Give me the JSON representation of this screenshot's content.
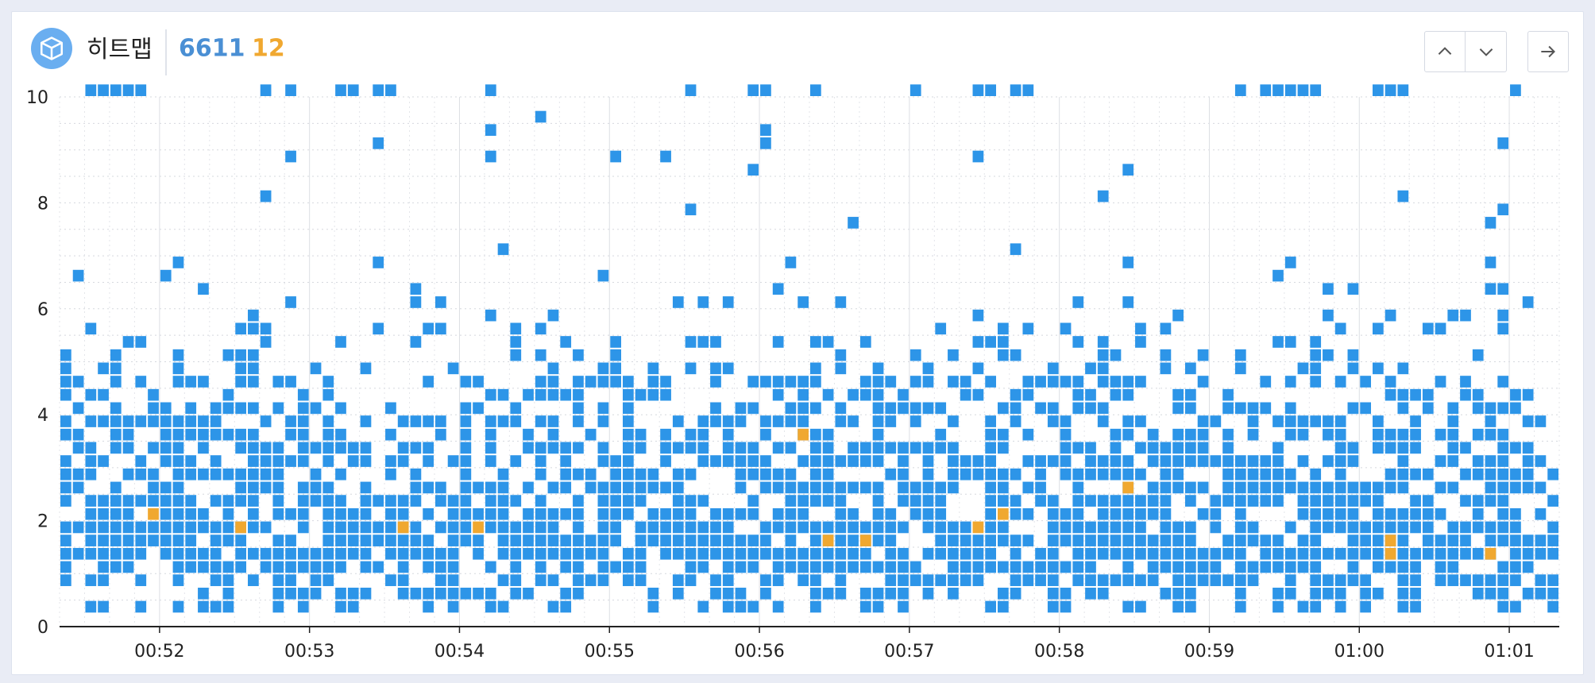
{
  "header": {
    "title": "히트맵",
    "total_count": "6611",
    "error_count": "12",
    "icon": "cube-icon",
    "buttons": {
      "up": "chevron-up-icon",
      "down": "chevron-down-icon",
      "go": "arrow-right-icon"
    }
  },
  "colors": {
    "normal": "#2d95e8",
    "error": "#f0a830",
    "total_text": "#4a8fd4"
  },
  "chart_data": {
    "type": "heatmap",
    "title": "",
    "xlabel": "",
    "ylabel": "",
    "x_unit": "time",
    "x_range": [
      "00:51:20",
      "01:01:20"
    ],
    "x_ticks": [
      "00:52",
      "00:53",
      "00:54",
      "00:55",
      "00:56",
      "00:57",
      "00:58",
      "00:59",
      "01:00",
      "01:01"
    ],
    "ylim": [
      0,
      10
    ],
    "y_ticks": [
      "0",
      "2",
      "4",
      "6",
      "8",
      "10"
    ],
    "grid": true,
    "cell_x_seconds": 5,
    "cell_y": 0.25,
    "error_cells": [
      [
        "00:51:55",
        2.0
      ],
      [
        "00:52:30",
        1.75
      ],
      [
        "00:53:35",
        1.75
      ],
      [
        "00:54:05",
        1.75
      ],
      [
        "00:56:15",
        3.5
      ],
      [
        "00:56:25",
        1.5
      ],
      [
        "00:56:40",
        1.5
      ],
      [
        "00:57:25",
        1.75
      ],
      [
        "00:57:35",
        2.0
      ],
      [
        "00:58:25",
        2.5
      ],
      [
        "01:00:10",
        1.5
      ],
      [
        "01:00:10",
        1.25
      ],
      [
        "01:00:50",
        1.25
      ]
    ],
    "high_cells": [
      [
        "00:51:30",
        10
      ],
      [
        "00:51:35",
        10
      ],
      [
        "00:51:40",
        10
      ],
      [
        "00:51:45",
        10
      ],
      [
        "00:51:50",
        10
      ],
      [
        "00:52:40",
        10
      ],
      [
        "00:52:50",
        10
      ],
      [
        "00:53:10",
        10
      ],
      [
        "00:53:15",
        10
      ],
      [
        "00:53:25",
        10
      ],
      [
        "00:53:30",
        10
      ],
      [
        "00:54:10",
        10
      ],
      [
        "00:55:30",
        10
      ],
      [
        "00:55:55",
        10
      ],
      [
        "00:56:00",
        10
      ],
      [
        "00:56:20",
        10
      ],
      [
        "00:57:00",
        10
      ],
      [
        "00:57:25",
        10
      ],
      [
        "00:57:30",
        10
      ],
      [
        "00:57:40",
        10
      ],
      [
        "00:57:45",
        10
      ],
      [
        "00:59:10",
        10
      ],
      [
        "00:59:20",
        10
      ],
      [
        "00:59:25",
        10
      ],
      [
        "00:59:30",
        10
      ],
      [
        "00:59:35",
        10
      ],
      [
        "00:59:40",
        10
      ],
      [
        "01:00:05",
        10
      ],
      [
        "01:00:10",
        10
      ],
      [
        "01:00:15",
        10
      ],
      [
        "01:01:00",
        10
      ],
      [
        "00:54:30",
        9.5
      ],
      [
        "00:54:10",
        9.25
      ],
      [
        "00:56:00",
        9.25
      ],
      [
        "00:53:25",
        9
      ],
      [
        "00:56:00",
        9
      ],
      [
        "01:00:55",
        9
      ],
      [
        "00:52:50",
        8.75
      ],
      [
        "00:54:10",
        8.75
      ],
      [
        "00:55:00",
        8.75
      ],
      [
        "00:55:20",
        8.75
      ],
      [
        "00:57:25",
        8.75
      ],
      [
        "00:55:55",
        8.5
      ],
      [
        "00:58:25",
        8.5
      ],
      [
        "00:52:40",
        8
      ],
      [
        "00:58:15",
        8
      ],
      [
        "01:00:15",
        8
      ],
      [
        "00:55:30",
        7.75
      ],
      [
        "01:00:55",
        7.75
      ],
      [
        "00:56:35",
        7.5
      ],
      [
        "01:00:50",
        7.5
      ],
      [
        "00:54:15",
        7
      ],
      [
        "00:57:40",
        7
      ],
      [
        "00:53:25",
        6.75
      ],
      [
        "00:52:05",
        6.75
      ],
      [
        "00:56:10",
        6.75
      ],
      [
        "00:58:25",
        6.75
      ],
      [
        "00:59:30",
        6.75
      ],
      [
        "01:00:50",
        6.75
      ],
      [
        "00:51:25",
        6.5
      ],
      [
        "00:52:00",
        6.5
      ],
      [
        "00:54:55",
        6.5
      ],
      [
        "00:59:25",
        6.5
      ],
      [
        "00:52:15",
        6.25
      ],
      [
        "00:53:40",
        6.25
      ],
      [
        "00:56:05",
        6.25
      ],
      [
        "00:59:45",
        6.25
      ],
      [
        "00:59:55",
        6.25
      ],
      [
        "01:00:50",
        6.25
      ],
      [
        "01:00:55",
        6.25
      ]
    ],
    "density_profile": {
      "y": [
        0,
        0.5,
        1,
        1.5,
        2,
        2.5,
        3,
        3.5,
        4,
        4.5,
        5,
        5.5,
        6
      ],
      "fill_ratio": [
        0.3,
        0.55,
        0.88,
        0.8,
        0.72,
        0.7,
        0.66,
        0.55,
        0.45,
        0.35,
        0.22,
        0.1,
        0.05
      ]
    }
  }
}
